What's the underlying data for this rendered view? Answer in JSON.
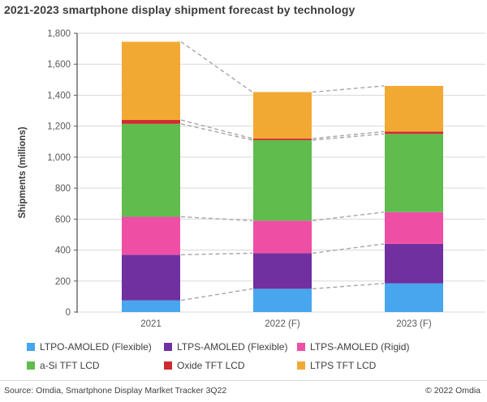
{
  "header": {
    "title": "2021-2023 smartphone display shipment forecast by technology"
  },
  "chart_data": {
    "type": "bar",
    "stacked": true,
    "title": "2021-2023 smartphone display shipment forecast by technology",
    "categories": [
      "2021",
      "2022 (F)",
      "2023 (F)"
    ],
    "series": [
      {
        "name": "LTPO-AMOLED (Flexible)",
        "color": "#47A6EE",
        "values": [
          75,
          150,
          185
        ]
      },
      {
        "name": "LTPS-AMOLED (Flexible)",
        "color": "#7030A0",
        "values": [
          295,
          230,
          255
        ]
      },
      {
        "name": "LTPS-AMOLED (Rigid)",
        "color": "#EE4FA5",
        "values": [
          245,
          210,
          205
        ]
      },
      {
        "name": "a-Si TFT LCD",
        "color": "#5FBC4D",
        "values": [
          600,
          520,
          505
        ]
      },
      {
        "name": "Oxide TFT LCD",
        "color": "#CE2B31",
        "values": [
          25,
          10,
          15
        ]
      },
      {
        "name": "LTPS TFT LCD",
        "color": "#F2A933",
        "values": [
          505,
          300,
          295
        ]
      }
    ],
    "totals": [
      1745,
      1420,
      1460
    ],
    "xlabel": "",
    "ylabel": "Shipments (millions)",
    "ylim": [
      0,
      1800
    ],
    "ytick_step": 200,
    "ytick_labels": [
      "0",
      "200",
      "400",
      "600",
      "800",
      "1,000",
      "1,200",
      "1,400",
      "1,600",
      "1,800"
    ],
    "grid": "horizontal",
    "legend_position": "bottom",
    "annotations": "gray dashed connector lines join each stack-segment boundary between adjacent bars",
    "colors": {
      "gridline": "#D9D9D9",
      "axis_line": "#595959",
      "tick_text": "#595959",
      "connector": "#A6A6A6",
      "title_text": "#3C3C3C"
    }
  },
  "footer": {
    "source": "Source: Omdia, Smartphone Display Marlket Tracker 3Q22",
    "copyright": "© 2022 Omdia"
  }
}
